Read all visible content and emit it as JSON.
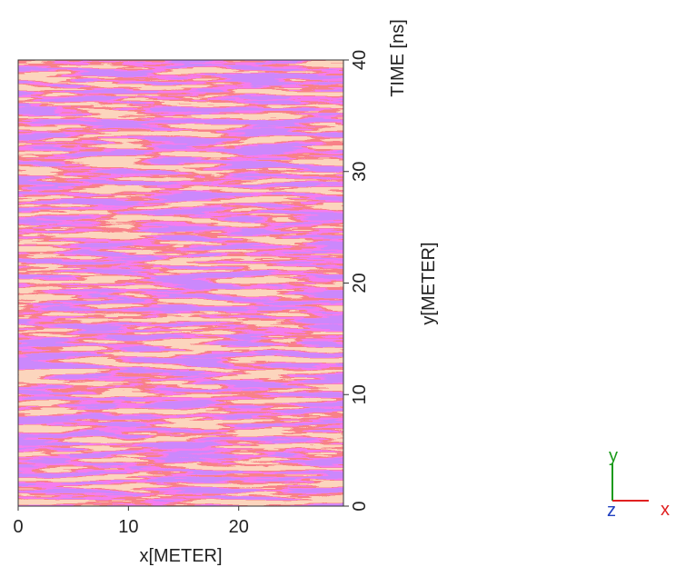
{
  "chart_data": {
    "type": "heatmap",
    "x_label": "x[METER]",
    "y_label": "y[METER]",
    "time_label": "TIME [ns]",
    "xlim": [
      0,
      29.5
    ],
    "xticks": [
      0,
      10,
      20
    ],
    "ylim": [
      0,
      40
    ],
    "yticks": [
      0,
      10,
      20,
      30,
      40
    ],
    "axis_indicator": {
      "x": "x",
      "y": "y",
      "z": "z"
    }
  }
}
